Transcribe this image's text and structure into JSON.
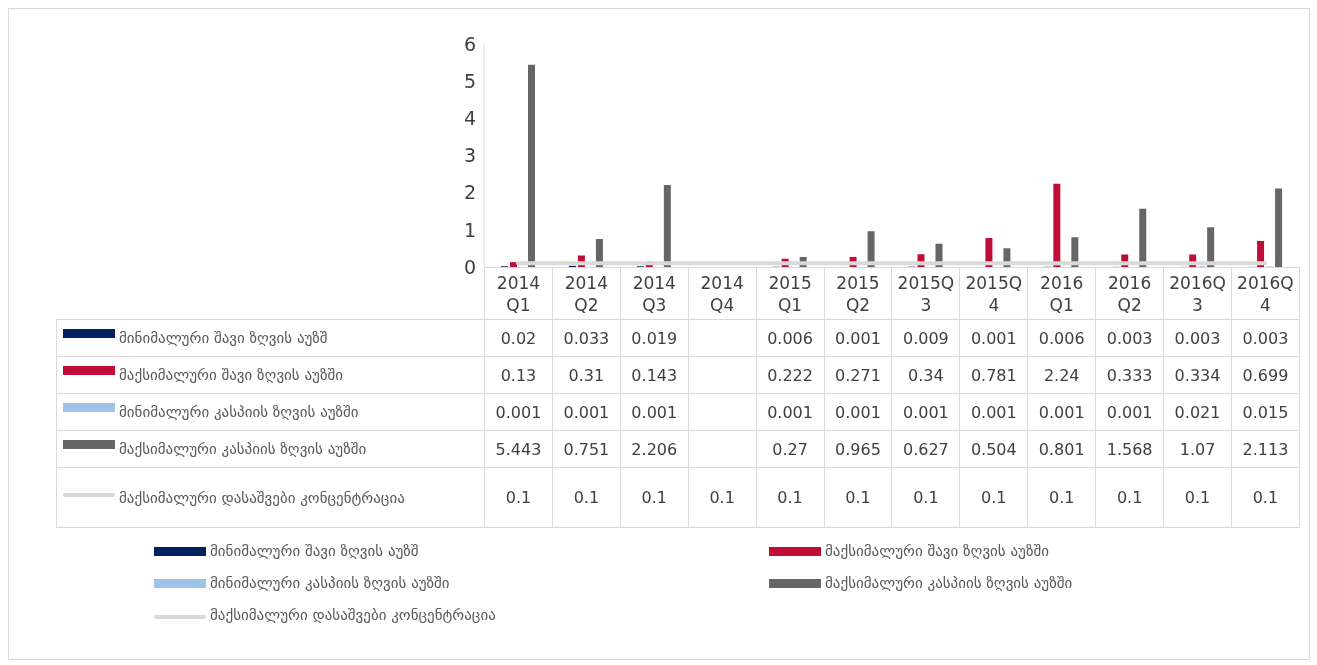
{
  "chart_data": {
    "type": "bar",
    "categories": [
      "2014 Q1",
      "2014 Q2",
      "2014 Q3",
      "2014 Q4",
      "2015 Q1",
      "2015 Q2",
      "2015Q3",
      "2015Q4",
      "2016 Q1",
      "2016 Q2",
      "2016Q3",
      "2016Q4"
    ],
    "series": [
      {
        "name": "მინიმალური შავი ზღვის აუზშ",
        "color": "#002060",
        "values": [
          0.02,
          0.033,
          0.019,
          null,
          0.006,
          0.001,
          0.009,
          0.001,
          0.006,
          0.003,
          0.003,
          0.003
        ]
      },
      {
        "name": "მაქსიმალური შავი ზღვის აუზში",
        "color": "#c00d38",
        "values": [
          0.13,
          0.31,
          0.143,
          null,
          0.222,
          0.271,
          0.34,
          0.781,
          2.24,
          0.333,
          0.334,
          0.699
        ]
      },
      {
        "name": "მინიმალური კასპიის ზღვის აუზში",
        "color": "#9dc3e6",
        "values": [
          0.001,
          0.001,
          0.001,
          null,
          0.001,
          0.001,
          0.001,
          0.001,
          0.001,
          0.001,
          0.021,
          0.015
        ]
      },
      {
        "name": "მაქსიმალური კასპიის ზღვის აუზში",
        "color": "#666666",
        "values": [
          5.443,
          0.751,
          2.206,
          null,
          0.27,
          0.965,
          0.627,
          0.504,
          0.801,
          1.568,
          1.07,
          2.113
        ]
      },
      {
        "name": "მაქსიმალური დასაშვები კონცენტრაცია",
        "color": "#d9d9d9",
        "type": "line",
        "values": [
          0.1,
          0.1,
          0.1,
          0.1,
          0.1,
          0.1,
          0.1,
          0.1,
          0.1,
          0.1,
          0.1,
          0.1
        ]
      }
    ],
    "ylim": [
      0,
      6
    ],
    "yticks": [
      0,
      1,
      2,
      3,
      4,
      5,
      6
    ],
    "data_labels": true,
    "legend": "bottom"
  }
}
